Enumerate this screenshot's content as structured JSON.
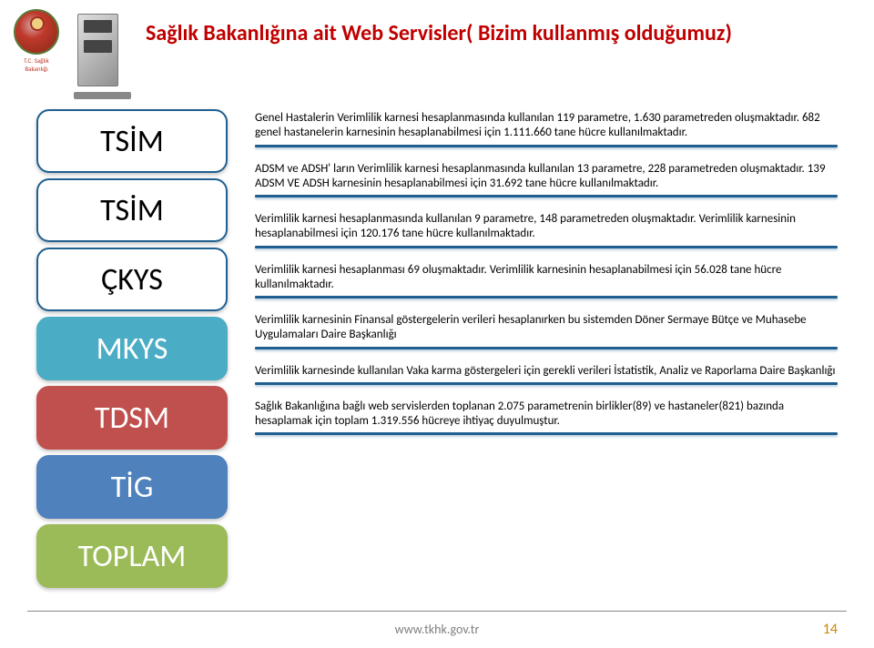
{
  "header": {
    "logo_caption": "T.C. Sağlık Bakanlığı",
    "title": "Sağlık Bakanlığına ait Web Servisler( Bizim kullanmış olduğumuz)"
  },
  "rows": [
    {
      "label": "TSİM",
      "color": "#1f6091",
      "text_color": "#000000",
      "desc": "Genel Hastalerin Verimlilik karnesi hesaplanmasında kullanılan 119 parametre, 1.630 parametreden oluşmaktadır. 682 genel hastanelerin karnesinin hesaplanabilmesi için 1.111.660 tane hücre kullanılmaktadır."
    },
    {
      "label": "TSİM",
      "color": "#1f6091",
      "text_color": "#000000",
      "desc": "ADSM ve ADSH' ların Verimlilik karnesi hesaplanmasında kullanılan 13 parametre, 228 parametreden oluşmaktadır. 139 ADSM VE ADSH karnesinin hesaplanabilmesi için 31.692 tane hücre kullanılmaktadır."
    },
    {
      "label": "ÇKYS",
      "color": "#1f6091",
      "text_color": "#000000",
      "desc": "Verimlilik karnesi hesaplanmasında kullanılan 9 parametre, 148 parametreden oluşmaktadır. Verimlilik karnesinin hesaplanabilmesi için 120.176 tane hücre kullanılmaktadır."
    },
    {
      "label": "MKYS",
      "color": "#4bacc6",
      "text_color": "#ffffff",
      "desc": "Verimlilik karnesi hesaplanması 69 oluşmaktadır. Verimlilik karnesinin hesaplanabilmesi için 56.028 tane hücre kullanılmaktadır."
    },
    {
      "label": "TDSM",
      "color": "#c0504d",
      "text_color": "#ffffff",
      "desc": "Verimlilik karnesinin Finansal göstergelerin verileri hesaplanırken bu sistemden Döner Sermaye Bütçe ve Muhasebe Uygulamaları Daire Başkanlığı"
    },
    {
      "label": "TİG",
      "color": "#4f81bd",
      "text_color": "#ffffff",
      "desc": "Verimlilik karnesinde kullanılan Vaka karma göstergeleri için gerekli verileri İstatistik, Analiz ve Raporlama Daire Başkanlığı"
    },
    {
      "label": "TOPLAM",
      "color": "#9bbb59",
      "text_color": "#ffffff",
      "desc": "Sağlık Bakanlığına bağlı web servislerden toplanan 2.075 parametrenin birlikler(89) ve hastaneler(821) bazında hesaplamak için toplam  1.319.556 hücreye ihtiyaç duyulmuştur."
    }
  ],
  "footer": {
    "url": "www.tkhk.gov.tr",
    "page": "14"
  },
  "style": {
    "separator_color": "#1f6091",
    "title_color": "#c00000",
    "background": "#ffffff",
    "pill_fontsize": 34,
    "desc_fontsize": 13
  }
}
